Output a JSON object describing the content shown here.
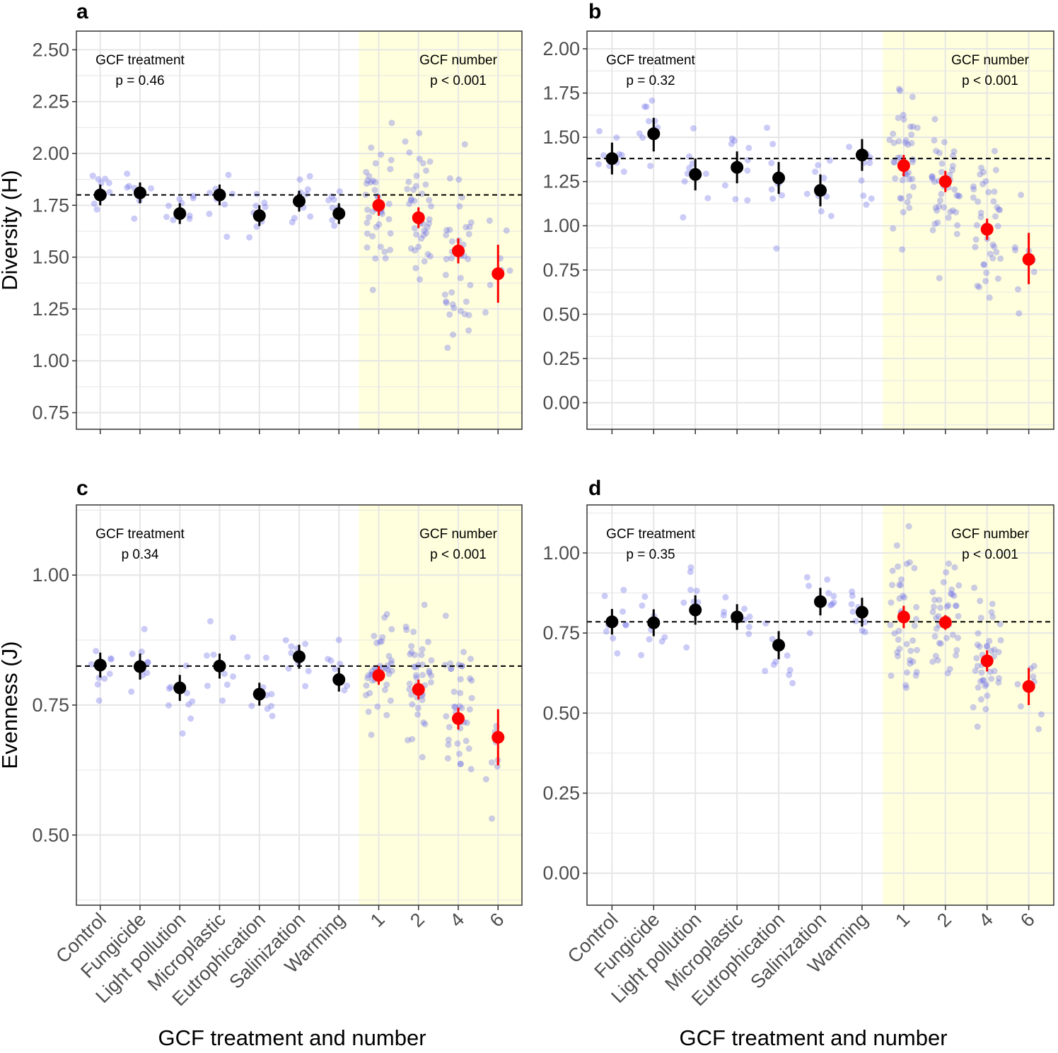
{
  "colors": {
    "treatment_mean": "#000000",
    "number_mean": "#ff0000",
    "raw_point": "#6a6ae8",
    "highlight_band": "#ffffdd",
    "gridline": "#e6e6e6",
    "reference_line": "#000000"
  },
  "chart_data": [
    {
      "type": "scatter",
      "panel": "a",
      "title": "",
      "xlabel": "",
      "ylabel": "Diversity (H)",
      "ylim": [
        0.67,
        2.59
      ],
      "yticks": [
        "0.75",
        "1.00",
        "1.25",
        "1.50",
        "1.75",
        "2.00",
        "2.25",
        "2.50"
      ],
      "ytick_values": [
        0.75,
        1.0,
        1.25,
        1.5,
        1.75,
        2.0,
        2.25,
        2.5
      ],
      "categories": [
        "Control",
        "Fungicide",
        "Light pollution",
        "Microplastic",
        "Eutrophication",
        "Salinization",
        "Warming",
        "1",
        "2",
        "4",
        "6"
      ],
      "highlight_from_category": "1",
      "reference_line": 1.8,
      "annotations": [
        {
          "label": "GCF treatment",
          "stat": "p = 0.46",
          "position": "top-left"
        },
        {
          "label": "GCF number",
          "stat": "p < 0.001",
          "position": "top-right"
        }
      ],
      "series": [
        {
          "name": "GCF treatment mean",
          "color": "#000000",
          "values": [
            1.8,
            1.81,
            1.71,
            1.8,
            1.7,
            1.77,
            1.71,
            null,
            null,
            null,
            null
          ],
          "ci_low": [
            1.75,
            1.76,
            1.66,
            1.75,
            1.65,
            1.72,
            1.66,
            null,
            null,
            null,
            null
          ],
          "ci_high": [
            1.85,
            1.86,
            1.76,
            1.85,
            1.75,
            1.82,
            1.76,
            null,
            null,
            null,
            null
          ]
        },
        {
          "name": "GCF number mean",
          "color": "#ff0000",
          "values": [
            null,
            null,
            null,
            null,
            null,
            null,
            null,
            1.75,
            1.69,
            1.53,
            1.42
          ],
          "ci_low": [
            null,
            null,
            null,
            null,
            null,
            null,
            null,
            1.7,
            1.64,
            1.47,
            1.28
          ],
          "ci_high": [
            null,
            null,
            null,
            null,
            null,
            null,
            null,
            1.8,
            1.74,
            1.59,
            1.56
          ]
        }
      ]
    },
    {
      "type": "scatter",
      "panel": "b",
      "title": "",
      "xlabel": "",
      "ylabel": "",
      "ylim": [
        -0.15,
        2.1
      ],
      "yticks": [
        "0.00",
        "0.25",
        "0.50",
        "0.75",
        "1.00",
        "1.25",
        "1.50",
        "1.75",
        "2.00"
      ],
      "ytick_values": [
        0.0,
        0.25,
        0.5,
        0.75,
        1.0,
        1.25,
        1.5,
        1.75,
        2.0
      ],
      "categories": [
        "Control",
        "Fungicide",
        "Light pollution",
        "Microplastic",
        "Eutrophication",
        "Salinization",
        "Warming",
        "1",
        "2",
        "4",
        "6"
      ],
      "highlight_from_category": "1",
      "reference_line": 1.38,
      "annotations": [
        {
          "label": "GCF treatment",
          "stat": "p = 0.32",
          "position": "top-left"
        },
        {
          "label": "GCF number",
          "stat": "p < 0.001",
          "position": "top-right"
        }
      ],
      "series": [
        {
          "name": "GCF treatment mean",
          "color": "#000000",
          "values": [
            1.38,
            1.52,
            1.29,
            1.33,
            1.27,
            1.2,
            1.4,
            null,
            null,
            null,
            null
          ],
          "ci_low": [
            1.29,
            1.42,
            1.2,
            1.24,
            1.18,
            1.11,
            1.31,
            null,
            null,
            null,
            null
          ],
          "ci_high": [
            1.47,
            1.61,
            1.38,
            1.42,
            1.36,
            1.29,
            1.49,
            null,
            null,
            null,
            null
          ]
        },
        {
          "name": "GCF number mean",
          "color": "#ff0000",
          "values": [
            null,
            null,
            null,
            null,
            null,
            null,
            null,
            1.34,
            1.25,
            0.98,
            0.81
          ],
          "ci_low": [
            null,
            null,
            null,
            null,
            null,
            null,
            null,
            1.28,
            1.19,
            0.92,
            0.67
          ],
          "ci_high": [
            null,
            null,
            null,
            null,
            null,
            null,
            null,
            1.4,
            1.31,
            1.04,
            0.96
          ]
        }
      ]
    },
    {
      "type": "scatter",
      "panel": "c",
      "title": "",
      "xlabel": "GCF treatment and number",
      "ylabel": "Evenness (J)",
      "ylim": [
        0.365,
        1.135
      ],
      "yticks": [
        "0.50",
        "0.75",
        "1.00"
      ],
      "ytick_values": [
        0.5,
        0.75,
        1.0
      ],
      "categories": [
        "Control",
        "Fungicide",
        "Light pollution",
        "Microplastic",
        "Eutrophication",
        "Salinization",
        "Warming",
        "1",
        "2",
        "4",
        "6"
      ],
      "highlight_from_category": "1",
      "reference_line": 0.825,
      "annotations": [
        {
          "label": "GCF treatment",
          "stat": "p 0.34",
          "position": "top-left"
        },
        {
          "label": "GCF number",
          "stat": "p < 0.001",
          "position": "top-right"
        }
      ],
      "series": [
        {
          "name": "GCF treatment mean",
          "color": "#000000",
          "values": [
            0.827,
            0.824,
            0.783,
            0.825,
            0.771,
            0.843,
            0.799,
            null,
            null,
            null,
            null
          ],
          "ci_low": [
            0.803,
            0.799,
            0.758,
            0.801,
            0.749,
            0.82,
            0.776,
            null,
            null,
            null,
            null
          ],
          "ci_high": [
            0.851,
            0.849,
            0.808,
            0.849,
            0.793,
            0.866,
            0.822,
            null,
            null,
            null,
            null
          ]
        },
        {
          "name": "GCF number mean",
          "color": "#ff0000",
          "values": [
            null,
            null,
            null,
            null,
            null,
            null,
            null,
            0.807,
            0.78,
            0.724,
            0.688
          ],
          "ci_low": [
            null,
            null,
            null,
            null,
            null,
            null,
            null,
            0.789,
            0.761,
            0.703,
            0.634
          ],
          "ci_high": [
            null,
            null,
            null,
            null,
            null,
            null,
            null,
            0.825,
            0.799,
            0.745,
            0.742
          ]
        }
      ]
    },
    {
      "type": "scatter",
      "panel": "d",
      "title": "",
      "xlabel": "GCF treatment and number",
      "ylabel": "",
      "ylim": [
        -0.1,
        1.15
      ],
      "yticks": [
        "0.00",
        "0.25",
        "0.50",
        "0.75",
        "1.00"
      ],
      "ytick_values": [
        0.0,
        0.25,
        0.5,
        0.75,
        1.0
      ],
      "categories": [
        "Control",
        "Fungicide",
        "Light pollution",
        "Microplastic",
        "Eutrophication",
        "Salinization",
        "Warming",
        "1",
        "2",
        "4",
        "6"
      ],
      "highlight_from_category": "1",
      "reference_line": 0.785,
      "annotations": [
        {
          "label": "GCF treatment",
          "stat": "p = 0.35",
          "position": "top-left"
        },
        {
          "label": "GCF number",
          "stat": "p < 0.001",
          "position": "top-right"
        }
      ],
      "series": [
        {
          "name": "GCF treatment mean",
          "color": "#000000",
          "values": [
            0.785,
            0.782,
            0.822,
            0.8,
            0.712,
            0.848,
            0.815,
            null,
            null,
            null,
            null
          ],
          "ci_low": [
            0.745,
            0.74,
            0.776,
            0.76,
            0.668,
            0.805,
            0.77,
            null,
            null,
            null,
            null
          ],
          "ci_high": [
            0.825,
            0.824,
            0.868,
            0.84,
            0.756,
            0.891,
            0.86,
            null,
            null,
            null,
            null
          ]
        },
        {
          "name": "GCF number mean",
          "color": "#ff0000",
          "values": [
            null,
            null,
            null,
            null,
            null,
            null,
            null,
            0.8,
            0.783,
            0.663,
            0.583
          ],
          "ci_low": [
            null,
            null,
            null,
            null,
            null,
            null,
            null,
            0.765,
            0.76,
            0.63,
            0.525
          ],
          "ci_high": [
            null,
            null,
            null,
            null,
            null,
            null,
            null,
            0.835,
            0.806,
            0.696,
            0.641
          ]
        }
      ]
    }
  ]
}
